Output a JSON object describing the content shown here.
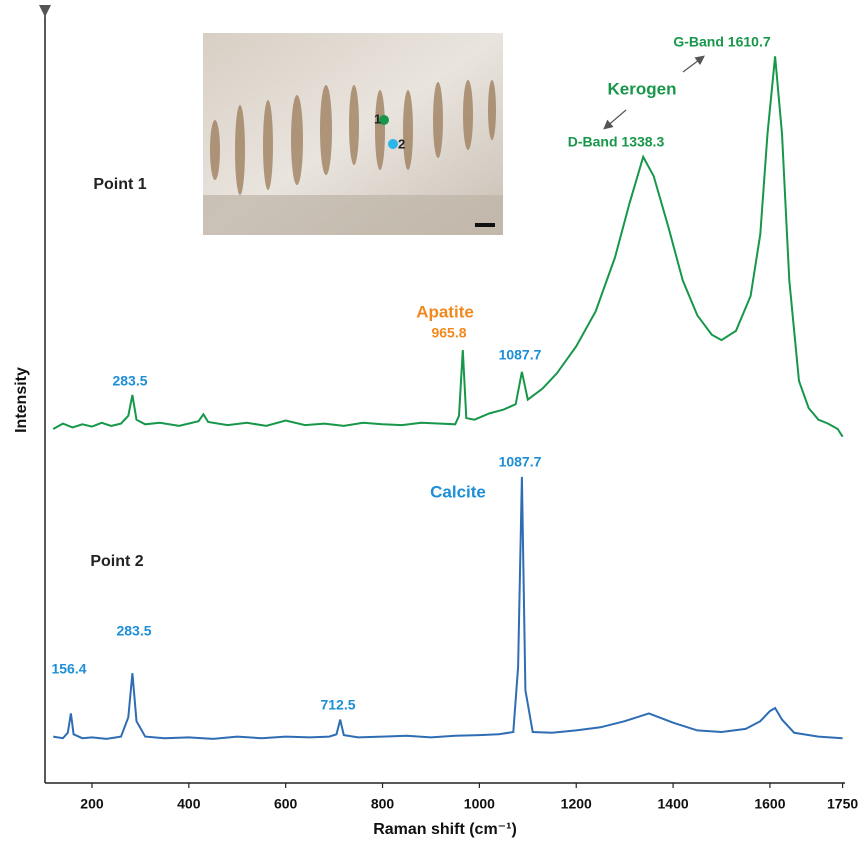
{
  "chart_data": {
    "type": "line",
    "x_label": "Raman shift (cm⁻¹)",
    "y_label": "Intensity",
    "xlim": [
      103,
      1755
    ],
    "ylim": [
      0,
      100
    ],
    "xticks": [
      200,
      400,
      600,
      800,
      1000,
      1200,
      1400,
      1600,
      1750
    ],
    "series": [
      {
        "name": "Point 1",
        "color": "#17974a",
        "x": [
          120,
          140,
          160,
          180,
          200,
          220,
          240,
          260,
          275,
          283.5,
          292,
          310,
          340,
          380,
          420,
          430,
          440,
          480,
          520,
          560,
          600,
          640,
          680,
          720,
          760,
          800,
          840,
          880,
          920,
          950,
          958,
          965.8,
          973,
          990,
          1020,
          1050,
          1075,
          1087.7,
          1100,
          1130,
          1160,
          1200,
          1240,
          1280,
          1310,
          1338.3,
          1360,
          1390,
          1420,
          1450,
          1480,
          1500,
          1530,
          1560,
          1580,
          1595,
          1610.7,
          1625,
          1640,
          1660,
          1680,
          1700,
          1720,
          1740,
          1750
        ],
        "values": [
          45.8,
          46.5,
          46.0,
          46.4,
          46.1,
          46.6,
          46.2,
          46.5,
          47.5,
          50.2,
          47.0,
          46.4,
          46.6,
          46.2,
          46.8,
          47.7,
          46.7,
          46.3,
          46.6,
          46.2,
          46.9,
          46.3,
          46.5,
          46.2,
          46.6,
          46.4,
          46.3,
          46.6,
          46.5,
          46.4,
          47.5,
          56.0,
          47.2,
          47.0,
          47.8,
          48.3,
          49.0,
          53.2,
          49.6,
          51.0,
          53.0,
          56.5,
          61.0,
          68.0,
          75.0,
          81.0,
          78.5,
          72.0,
          65.0,
          60.5,
          58.0,
          57.3,
          58.5,
          63.0,
          71.0,
          84.0,
          94.0,
          84.0,
          65.0,
          52.0,
          48.5,
          47.0,
          46.5,
          45.8,
          44.8
        ]
      },
      {
        "name": "Point 2",
        "color": "#2e6db4",
        "x": [
          120,
          140,
          150,
          156.4,
          162,
          180,
          200,
          230,
          260,
          275,
          283.5,
          292,
          310,
          350,
          400,
          450,
          500,
          550,
          600,
          650,
          690,
          705,
          712.5,
          720,
          750,
          800,
          850,
          900,
          950,
          1000,
          1040,
          1070,
          1080,
          1087.7,
          1095,
          1110,
          1150,
          1200,
          1250,
          1300,
          1350,
          1400,
          1450,
          1500,
          1550,
          1580,
          1600,
          1610.7,
          1625,
          1650,
          1700,
          1750
        ],
        "values": [
          6.0,
          5.8,
          6.5,
          9.0,
          6.3,
          5.8,
          5.9,
          5.7,
          6.0,
          8.5,
          14.2,
          8.0,
          6.0,
          5.8,
          5.9,
          5.7,
          6.0,
          5.8,
          6.0,
          5.9,
          6.0,
          6.3,
          8.2,
          6.2,
          5.9,
          6.0,
          6.1,
          5.9,
          6.1,
          6.2,
          6.3,
          6.6,
          15,
          39.6,
          12,
          6.6,
          6.5,
          6.8,
          7.2,
          8.0,
          9.0,
          7.8,
          6.8,
          6.6,
          7.0,
          8.0,
          9.3,
          9.7,
          8.2,
          6.5,
          6.0,
          5.8
        ]
      }
    ],
    "annotations": [
      {
        "text": "283.5",
        "color": "#1e8fd6"
      },
      {
        "text": "Apatite",
        "color": "#f0891e"
      },
      {
        "text": "965.8",
        "color": "#f0891e"
      },
      {
        "text": "1087.7",
        "color": "#1e8fd6"
      },
      {
        "text": "D-Band 1338.3",
        "color": "#17974a"
      },
      {
        "text": "Kerogen",
        "color": "#17974a"
      },
      {
        "text": "G-Band 1610.7",
        "color": "#17974a"
      },
      {
        "text": "1087.7",
        "color": "#1e8fd6"
      },
      {
        "text": "Calcite",
        "color": "#1e8fd6"
      },
      {
        "text": "156.4",
        "color": "#1e8fd6"
      },
      {
        "text": "283.5",
        "color": "#1e8fd6"
      },
      {
        "text": "712.5",
        "color": "#1e8fd6"
      }
    ]
  },
  "inset": {
    "labels": [
      "1",
      "2"
    ]
  }
}
